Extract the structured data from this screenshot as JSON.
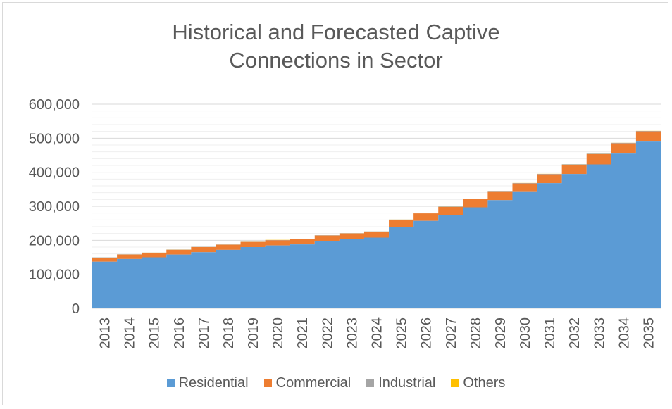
{
  "chart_data": {
    "type": "area",
    "title_lines": [
      "Historical and Forecasted Captive",
      "Connections in Sector"
    ],
    "categories": [
      "2013",
      "2014",
      "2015",
      "2016",
      "2017",
      "2018",
      "2019",
      "2020",
      "2021",
      "2022",
      "2023",
      "2024",
      "2025",
      "2026",
      "2027",
      "2028",
      "2029",
      "2030",
      "2031",
      "2032",
      "2033",
      "2034",
      "2035"
    ],
    "series": [
      {
        "name": "Residential",
        "color": "#5b9bd5",
        "values": [
          137000,
          145000,
          150000,
          158000,
          165000,
          172000,
          180000,
          185000,
          188000,
          197000,
          203000,
          208000,
          240000,
          257000,
          275000,
          297000,
          318000,
          342000,
          368000,
          395000,
          423000,
          455000,
          490000
        ]
      },
      {
        "name": "Commercial",
        "color": "#ed7d31",
        "values": [
          12000,
          13000,
          13000,
          14000,
          15000,
          15000,
          15000,
          15000,
          15000,
          17000,
          17000,
          17000,
          20000,
          22000,
          23000,
          24000,
          24000,
          25000,
          26000,
          27000,
          30000,
          30000,
          30000
        ]
      },
      {
        "name": "Industrial",
        "color": "#a5a5a5",
        "values": [
          800,
          800,
          800,
          800,
          800,
          800,
          800,
          800,
          800,
          900,
          900,
          900,
          1000,
          1000,
          1000,
          1100,
          1100,
          1200,
          1200,
          1300,
          1300,
          1400,
          1400
        ]
      },
      {
        "name": "Others",
        "color": "#ffc000",
        "values": [
          300,
          300,
          300,
          300,
          300,
          300,
          300,
          300,
          300,
          300,
          300,
          300,
          300,
          300,
          300,
          300,
          300,
          300,
          300,
          300,
          300,
          300,
          300
        ]
      }
    ],
    "y_ticks": [
      "0",
      "100,000",
      "200,000",
      "300,000",
      "400,000",
      "500,000",
      "600,000"
    ],
    "ylim": [
      0,
      600000
    ],
    "stacked": true,
    "step": true,
    "grid": true,
    "legend_position": "bottom"
  }
}
